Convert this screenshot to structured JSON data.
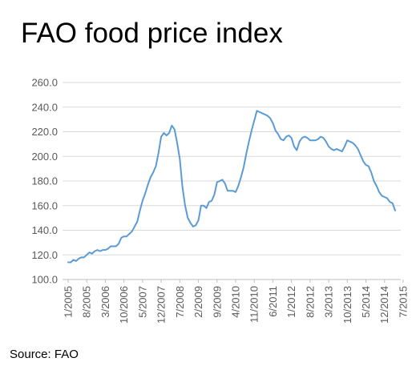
{
  "title": "FAO food price index",
  "source": "Source: FAO",
  "colors": {
    "line": "#5b9bd5",
    "grid": "#d9d9d9",
    "axis": "#bfbfbf",
    "text": "#595959"
  },
  "chart_data": {
    "type": "line",
    "title": "FAO food price index",
    "xlabel": "",
    "ylabel": "",
    "ylim": [
      100.0,
      260.0
    ],
    "yticks": [
      "100.0",
      "120.0",
      "140.0",
      "160.0",
      "180.0",
      "200.0",
      "220.0",
      "240.0",
      "260.0"
    ],
    "xticks": [
      "1/2005",
      "8/2005",
      "3/2006",
      "10/2006",
      "5/2007",
      "12/2007",
      "7/2008",
      "2/2009",
      "9/2009",
      "4/2010",
      "11/2010",
      "6/2011",
      "1/2012",
      "8/2012",
      "3/2013",
      "10/2013",
      "5/2014",
      "12/2014",
      "7/2015"
    ],
    "grid": true,
    "legend": "none",
    "series": [
      {
        "x_start": "1/2005",
        "x_end": "7/2015",
        "frequency": "monthly",
        "values": [
          114,
          114,
          116,
          115,
          117,
          118,
          118,
          120,
          122,
          121,
          123,
          124,
          123,
          124,
          124,
          125,
          127,
          127,
          127,
          129,
          134,
          135,
          135,
          137,
          139,
          143,
          147,
          156,
          164,
          170,
          177,
          183,
          187,
          192,
          203,
          216,
          219,
          217,
          219,
          225,
          222,
          211,
          198,
          175,
          160,
          150,
          146,
          143,
          144,
          148,
          160,
          160,
          158,
          163,
          164,
          169,
          179,
          180,
          181,
          178,
          172,
          172,
          172,
          171,
          176,
          183,
          191,
          202,
          212,
          221,
          229,
          237,
          236,
          235,
          234,
          233,
          231,
          227,
          221,
          218,
          214,
          213,
          216,
          217,
          215,
          208,
          205,
          212,
          215,
          216,
          215,
          213,
          213,
          213,
          214,
          216,
          215,
          212,
          208,
          206,
          205,
          206,
          205,
          204,
          208,
          213,
          212,
          211,
          209,
          206,
          201,
          196,
          193,
          192,
          187,
          180,
          176,
          171,
          168,
          167,
          166,
          163,
          162,
          156
        ]
      }
    ]
  }
}
